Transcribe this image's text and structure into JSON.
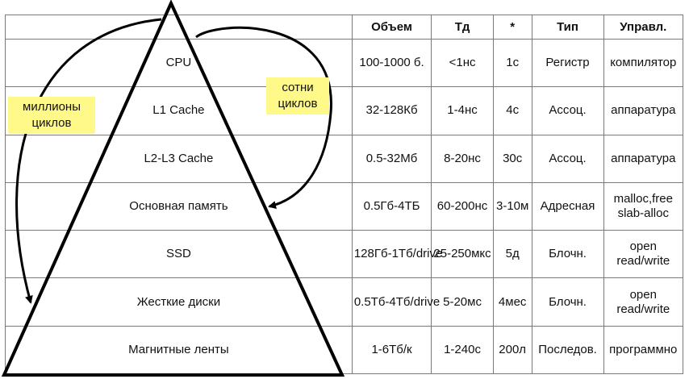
{
  "table": {
    "headers": [
      "",
      "Объем",
      "Тд",
      "*",
      "Тип",
      "Управл."
    ],
    "rows": [
      {
        "level": "CPU",
        "volume": "100-1000 б.",
        "td": "<1нс",
        "star": "1с",
        "type": "Регистр",
        "control": "компилятор"
      },
      {
        "level": "L1 Cache",
        "volume": "32-128Кб",
        "td": "1-4нс",
        "star": "4с",
        "type": "Ассоц.",
        "control": "аппаратура"
      },
      {
        "level": "L2-L3 Cache",
        "volume": "0.5-32Мб",
        "td": "8-20нс",
        "star": "30с",
        "type": "Ассоц.",
        "control": "аппаратура"
      },
      {
        "level": "Основная память",
        "volume": "0.5Гб-4ТБ",
        "td": "60-200нс",
        "star": "3-10м",
        "type": "Адресная",
        "control": "malloc,free slab-alloc"
      },
      {
        "level": "SSD",
        "volume": "128Гб-1Тб/drive",
        "td": "25-250мкс",
        "star": "5д",
        "type": "Блочн.",
        "control": "open read/write"
      },
      {
        "level": "Жесткие диски",
        "volume": "0.5Тб-4Тб/drive",
        "td": "5-20мс",
        "star": "4мес",
        "type": "Блочн.",
        "control": "open read/write"
      },
      {
        "level": "Магнитные ленты",
        "volume": "1-6Тб/к",
        "td": "1-240с",
        "star": "200л",
        "type": "Последов.",
        "control": "программно"
      }
    ]
  },
  "notes": {
    "left": "миллионы циклов",
    "right": "сотни циклов"
  },
  "colors": {
    "note_bg": "#fff98a",
    "border": "#7a7a7a",
    "pyramid": "#000000"
  }
}
